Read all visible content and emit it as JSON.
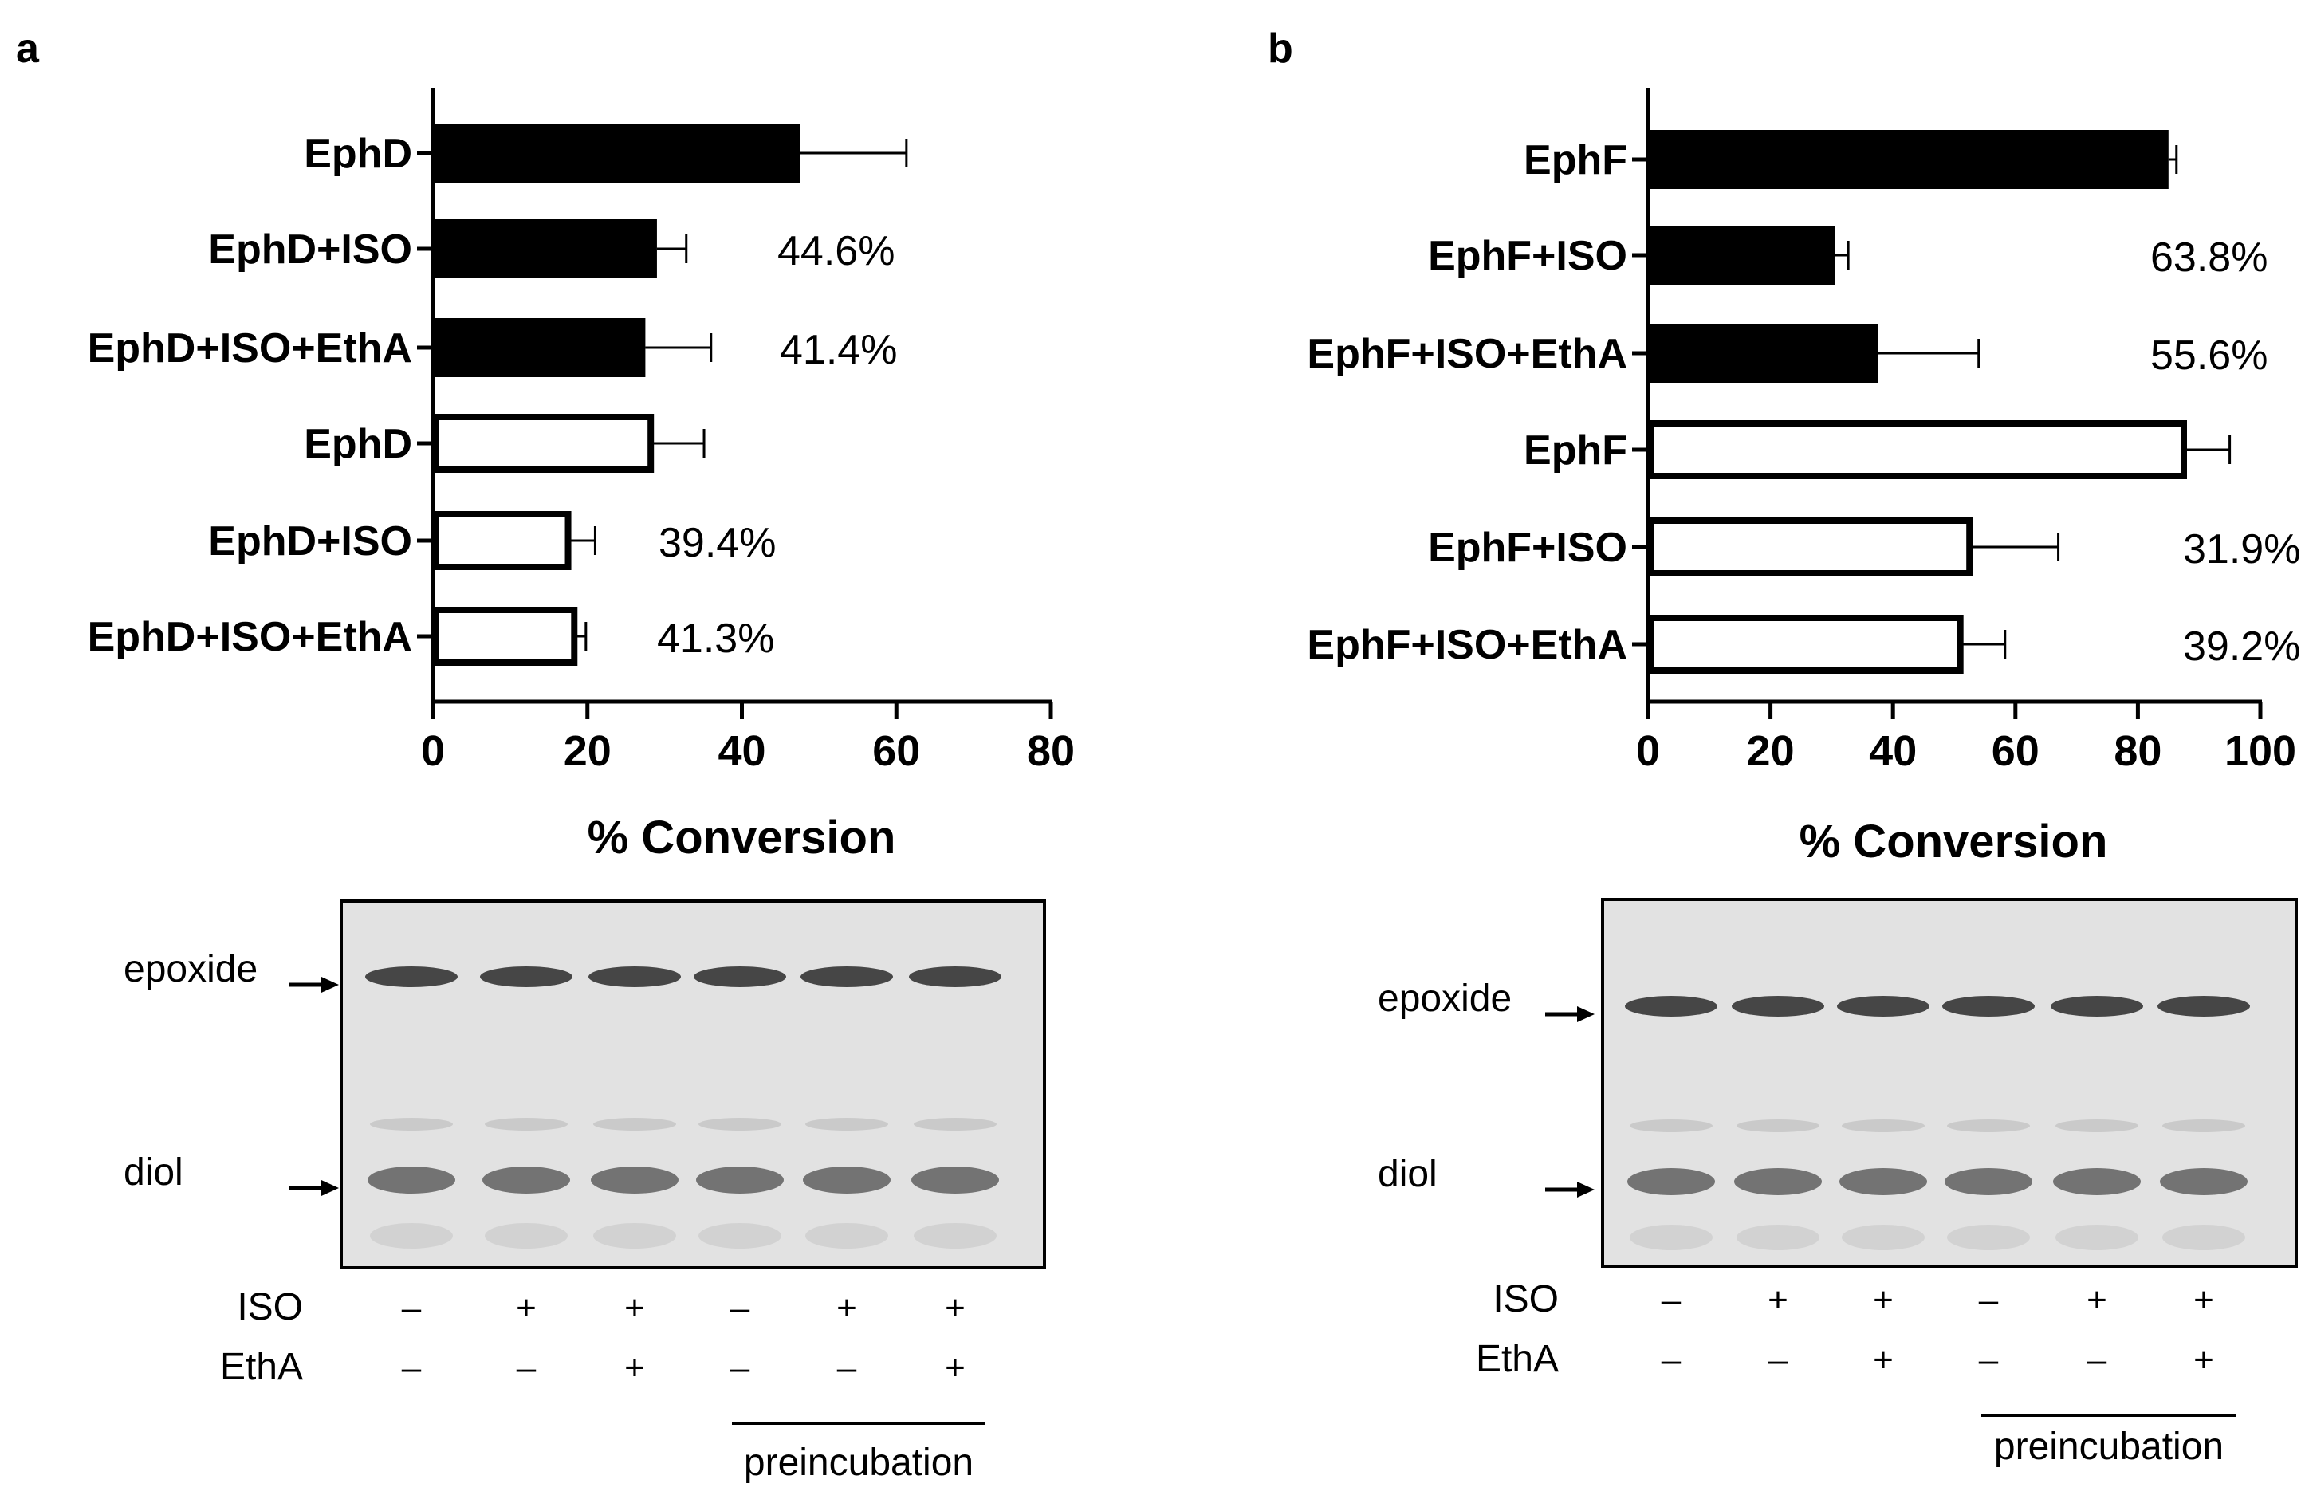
{
  "chart_data": [
    {
      "panel_label": "a",
      "type": "bar",
      "orientation": "horizontal",
      "categories": [
        "EphD",
        "EphD+ISO",
        "EphD+ISO+EthA",
        "EphD",
        "EphD+ISO",
        "EphD+ISO+EthA"
      ],
      "values": [
        47.5,
        29,
        27.5,
        28.2,
        17.5,
        18.3
      ],
      "errors": [
        13.8,
        3.8,
        8.5,
        6.9,
        3.5,
        1.5
      ],
      "fills": [
        "solid",
        "solid",
        "solid",
        "open",
        "open",
        "open"
      ],
      "annotations": [
        "",
        "44.6%",
        "41.4%",
        "",
        "39.4%",
        "41.3%"
      ],
      "xlabel": "% Conversion",
      "xlim": [
        0,
        80
      ],
      "xticks": [
        "0",
        "20",
        "40",
        "60",
        "80"
      ],
      "gel": {
        "band_labels": [
          "epoxide",
          "diol"
        ],
        "lanes": 6,
        "row_labels": [
          "ISO",
          "EthA"
        ],
        "rows": [
          [
            "–",
            "+",
            "+",
            "–",
            "+",
            "+"
          ],
          [
            "–",
            "–",
            "+",
            "–",
            "–",
            "+"
          ]
        ],
        "bracket_label": "preincubation"
      }
    },
    {
      "panel_label": "b",
      "type": "bar",
      "orientation": "horizontal",
      "categories": [
        "EphF",
        "EphF+ISO",
        "EphF+ISO+EthA",
        "EphF",
        "EphF+ISO",
        "EphF+ISO+EthA"
      ],
      "values": [
        85,
        30.5,
        37.5,
        87.5,
        52.5,
        51
      ],
      "errors": [
        1.3,
        2.2,
        16.5,
        7.5,
        14.5,
        7.3
      ],
      "fills": [
        "solid",
        "solid",
        "solid",
        "open",
        "open",
        "open"
      ],
      "annotations": [
        "",
        "63.8%",
        "55.6%",
        "",
        "31.9%",
        "39.2%"
      ],
      "xlabel": "% Conversion",
      "xlim": [
        0,
        100
      ],
      "xticks": [
        "0",
        "20",
        "40",
        "60",
        "80",
        "100"
      ],
      "gel": {
        "band_labels": [
          "epoxide",
          "diol"
        ],
        "lanes": 6,
        "row_labels": [
          "ISO",
          "EthA"
        ],
        "rows": [
          [
            "–",
            "+",
            "+",
            "–",
            "+",
            "+"
          ],
          [
            "–",
            "–",
            "+",
            "–",
            "–",
            "+"
          ]
        ],
        "bracket_label": "preincubation"
      }
    }
  ]
}
